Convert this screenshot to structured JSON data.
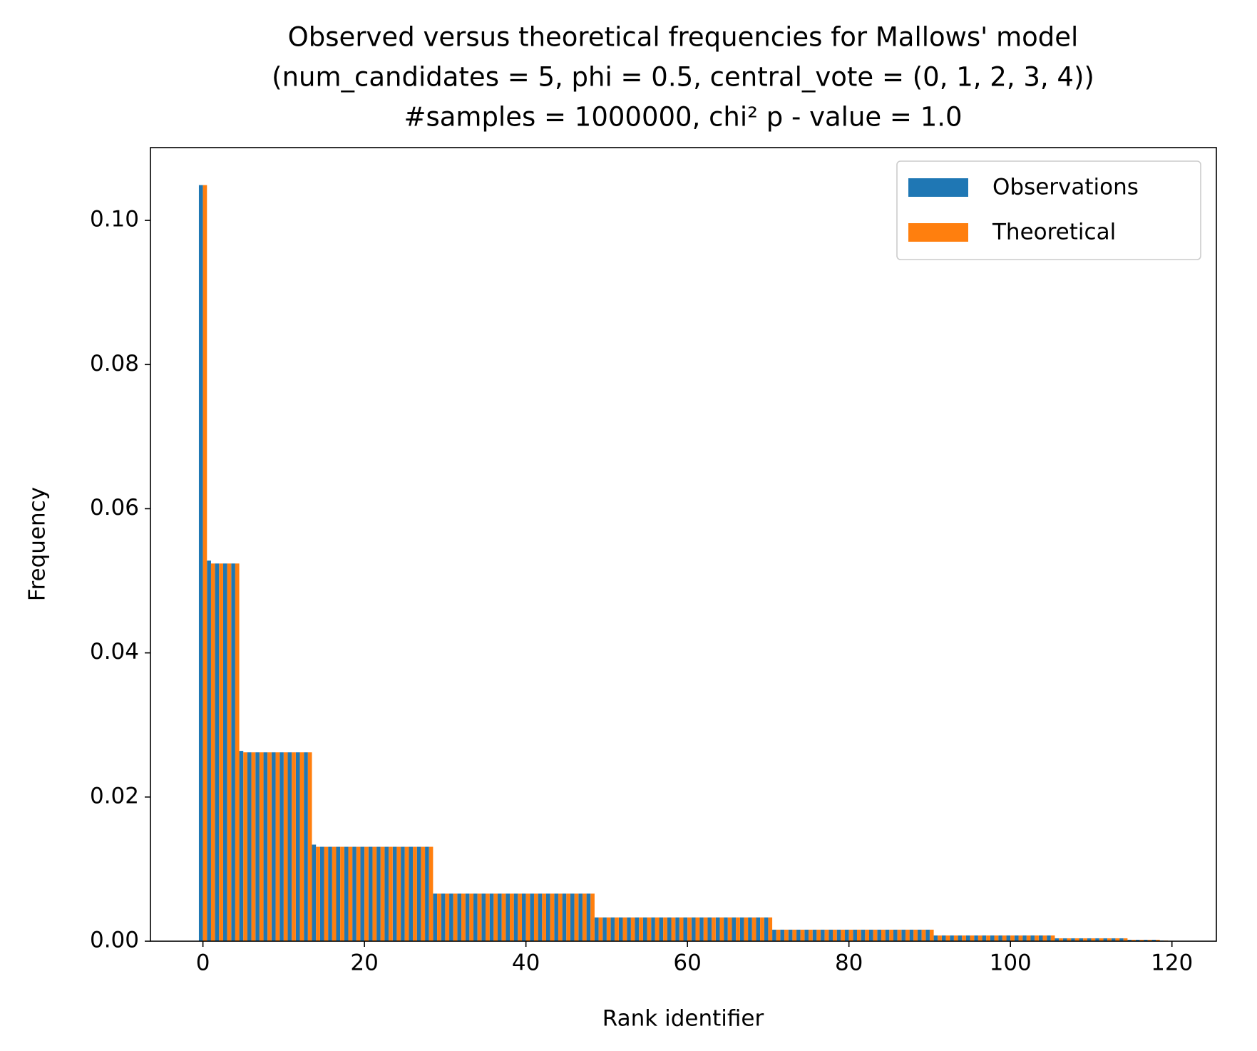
{
  "chart_data": {
    "type": "bar",
    "title": [
      "Observed versus theoretical frequencies for Mallows' model",
      "(num_candidates = 5, phi = 0.5, central_vote = (0, 1, 2, 3, 4))",
      "#samples = 1000000, chi² p - value = 1.0"
    ],
    "xlabel": "Rank identifier",
    "ylabel": "Frequency",
    "x": [
      0,
      1,
      2,
      3,
      4,
      5,
      6,
      7,
      8,
      9,
      10,
      11,
      12,
      13,
      14,
      15,
      16,
      17,
      18,
      19,
      20,
      21,
      22,
      23,
      24,
      25,
      26,
      27,
      28,
      29,
      30,
      31,
      32,
      33,
      34,
      35,
      36,
      37,
      38,
      39,
      40,
      41,
      42,
      43,
      44,
      45,
      46,
      47,
      48,
      49,
      50,
      51,
      52,
      53,
      54,
      55,
      56,
      57,
      58,
      59,
      60,
      61,
      62,
      63,
      64,
      65,
      66,
      67,
      68,
      69,
      70,
      71,
      72,
      73,
      74,
      75,
      76,
      77,
      78,
      79,
      80,
      81,
      82,
      83,
      84,
      85,
      86,
      87,
      88,
      89,
      90,
      91,
      92,
      93,
      94,
      95,
      96,
      97,
      98,
      99,
      100,
      101,
      102,
      103,
      104,
      105,
      106,
      107,
      108,
      109,
      110,
      111,
      112,
      113,
      114,
      115,
      116,
      117,
      118,
      119
    ],
    "series": [
      {
        "name": "Observations",
        "color": "#1f77b4",
        "values": [
          0.1049,
          0.0528,
          0.0524,
          0.0524,
          0.0524,
          0.0264,
          0.0262,
          0.0262,
          0.0262,
          0.0262,
          0.0262,
          0.0262,
          0.0262,
          0.0262,
          0.0134,
          0.0131,
          0.0131,
          0.0131,
          0.0131,
          0.0131,
          0.0131,
          0.0131,
          0.0131,
          0.0131,
          0.0131,
          0.0131,
          0.0131,
          0.0131,
          0.0131,
          0.0066,
          0.0066,
          0.0066,
          0.0066,
          0.0066,
          0.0066,
          0.0066,
          0.0066,
          0.0066,
          0.0066,
          0.0066,
          0.0066,
          0.0066,
          0.0066,
          0.0066,
          0.0066,
          0.0066,
          0.0066,
          0.0066,
          0.0066,
          0.0033,
          0.0033,
          0.0033,
          0.0033,
          0.0033,
          0.0033,
          0.0033,
          0.0033,
          0.0033,
          0.0033,
          0.0033,
          0.0033,
          0.0033,
          0.0033,
          0.0033,
          0.0033,
          0.0033,
          0.0033,
          0.0033,
          0.0033,
          0.0033,
          0.0033,
          0.0016,
          0.0016,
          0.0016,
          0.0016,
          0.0016,
          0.0016,
          0.0016,
          0.0016,
          0.0016,
          0.0016,
          0.0016,
          0.0016,
          0.0016,
          0.0016,
          0.0016,
          0.0016,
          0.0016,
          0.0016,
          0.0016,
          0.0016,
          0.0008,
          0.0008,
          0.0008,
          0.0008,
          0.0008,
          0.0008,
          0.0008,
          0.0008,
          0.0008,
          0.0008,
          0.0008,
          0.0008,
          0.0008,
          0.0008,
          0.0008,
          0.0004,
          0.0004,
          0.0004,
          0.0004,
          0.0004,
          0.0004,
          0.0004,
          0.0004,
          0.0004,
          0.0002,
          0.0002,
          0.0002,
          0.0002,
          0.0001
        ]
      },
      {
        "name": "Theoretical",
        "color": "#ff7f0e",
        "values": [
          0.1049,
          0.0524,
          0.0524,
          0.0524,
          0.0524,
          0.0262,
          0.0262,
          0.0262,
          0.0262,
          0.0262,
          0.0262,
          0.0262,
          0.0262,
          0.0262,
          0.0131,
          0.0131,
          0.0131,
          0.0131,
          0.0131,
          0.0131,
          0.0131,
          0.0131,
          0.0131,
          0.0131,
          0.0131,
          0.0131,
          0.0131,
          0.0131,
          0.0131,
          0.0066,
          0.0066,
          0.0066,
          0.0066,
          0.0066,
          0.0066,
          0.0066,
          0.0066,
          0.0066,
          0.0066,
          0.0066,
          0.0066,
          0.0066,
          0.0066,
          0.0066,
          0.0066,
          0.0066,
          0.0066,
          0.0066,
          0.0066,
          0.0033,
          0.0033,
          0.0033,
          0.0033,
          0.0033,
          0.0033,
          0.0033,
          0.0033,
          0.0033,
          0.0033,
          0.0033,
          0.0033,
          0.0033,
          0.0033,
          0.0033,
          0.0033,
          0.0033,
          0.0033,
          0.0033,
          0.0033,
          0.0033,
          0.0033,
          0.0016,
          0.0016,
          0.0016,
          0.0016,
          0.0016,
          0.0016,
          0.0016,
          0.0016,
          0.0016,
          0.0016,
          0.0016,
          0.0016,
          0.0016,
          0.0016,
          0.0016,
          0.0016,
          0.0016,
          0.0016,
          0.0016,
          0.0016,
          0.0008,
          0.0008,
          0.0008,
          0.0008,
          0.0008,
          0.0008,
          0.0008,
          0.0008,
          0.0008,
          0.0008,
          0.0008,
          0.0008,
          0.0008,
          0.0008,
          0.0008,
          0.0004,
          0.0004,
          0.0004,
          0.0004,
          0.0004,
          0.0004,
          0.0004,
          0.0004,
          0.0004,
          0.0002,
          0.0002,
          0.0002,
          0.0002,
          0.0001
        ]
      }
    ],
    "xlim": [
      -6.5,
      125.5
    ],
    "xticks": [
      0,
      20,
      40,
      60,
      80,
      100,
      120
    ],
    "ylim": [
      0,
      0.1101
    ],
    "yticks": [
      {
        "value": 0,
        "label": "0.00"
      },
      {
        "value": 0.02,
        "label": "0.02"
      },
      {
        "value": 0.04,
        "label": "0.04"
      },
      {
        "value": 0.06,
        "label": "0.06"
      },
      {
        "value": 0.08,
        "label": "0.08"
      },
      {
        "value": 0.1,
        "label": "0.10"
      }
    ],
    "grid": false,
    "legend": "upper right"
  }
}
